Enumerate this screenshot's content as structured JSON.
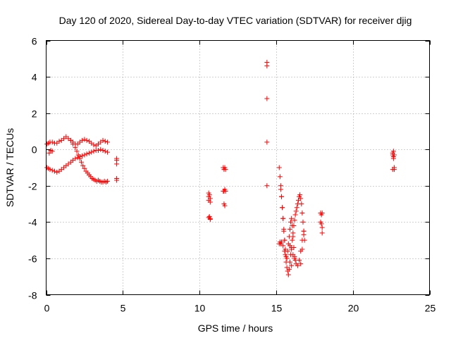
{
  "chart_data": {
    "type": "scatter",
    "title": "Day 120 of 2020, Sidereal Day-to-day VTEC variation (SDTVAR) for receiver djig",
    "xlabel": "GPS time / hours",
    "ylabel": "SDTVAR / TECUs",
    "xlim": [
      0,
      25
    ],
    "ylim": [
      -8,
      6
    ],
    "xticks": [
      0,
      5,
      10,
      15,
      20,
      25
    ],
    "yticks": [
      -8,
      -6,
      -4,
      -2,
      0,
      2,
      4,
      6
    ],
    "grid": true,
    "marker": "plus",
    "color": "#ff0000",
    "series": [
      {
        "name": "SDTVAR",
        "x": [
          0.05,
          0.15,
          0.25,
          0.4,
          0.55,
          0.7,
          0.85,
          1.0,
          1.15,
          1.3,
          1.45,
          1.6,
          1.75,
          1.9,
          2.05,
          2.2,
          2.35,
          2.5,
          2.65,
          2.8,
          2.95,
          3.1,
          3.25,
          3.4,
          3.55,
          3.7,
          3.85,
          4.0,
          0.05,
          0.15,
          0.25,
          0.4,
          0.55,
          0.7,
          0.85,
          1.0,
          1.15,
          1.3,
          1.45,
          1.6,
          1.75,
          1.9,
          2.05,
          2.2,
          2.35,
          2.5,
          2.65,
          2.8,
          2.95,
          3.1,
          3.25,
          3.4,
          3.55,
          3.7,
          3.85,
          4.0,
          1.6,
          1.75,
          1.9,
          2.0,
          2.1,
          2.2,
          2.3,
          2.4,
          2.5,
          2.6,
          2.7,
          2.8,
          2.9,
          3.0,
          3.1,
          3.2,
          3.3,
          3.4,
          3.5,
          3.6,
          3.7,
          3.8,
          3.9,
          4.0,
          0.2,
          0.3,
          0.4,
          4.6,
          4.6,
          4.6,
          4.6,
          4.6,
          10.6,
          10.6,
          10.6,
          10.6,
          10.65,
          10.65,
          10.7,
          10.7,
          10.7,
          10.7,
          11.55,
          11.55,
          11.6,
          11.6,
          11.6,
          11.65,
          11.65,
          11.65,
          11.7,
          11.7,
          14.4,
          14.4,
          14.4,
          14.4,
          14.4,
          15.2,
          15.25,
          15.3,
          15.35,
          15.35,
          15.4,
          15.45,
          15.45,
          15.5,
          15.55,
          15.55,
          15.6,
          15.65,
          15.7,
          15.75,
          15.8,
          15.85,
          15.9,
          15.95,
          16.0,
          16.0,
          16.05,
          16.1,
          16.15,
          16.2,
          16.25,
          16.3,
          16.35,
          16.4,
          16.45,
          16.5,
          16.55,
          16.6,
          16.65,
          16.7,
          16.75,
          16.8,
          16.85,
          16.6,
          16.7,
          16.8,
          15.3,
          15.35,
          15.4,
          15.45,
          15.5,
          15.55,
          15.6,
          15.65,
          15.7,
          15.75,
          15.8,
          15.85,
          15.9,
          15.95,
          16.0,
          16.05,
          16.1,
          16.15,
          16.2,
          16.25,
          16.3,
          16.4,
          16.5,
          16.6,
          16.7,
          16.8,
          15.2,
          15.25,
          15.3,
          15.9,
          16.0,
          16.1,
          16.2,
          17.9,
          17.9,
          17.95,
          17.95,
          18.0,
          18.0,
          18.0,
          22.6,
          22.6,
          22.65,
          22.65,
          22.7,
          22.7,
          22.6,
          22.65,
          22.7
        ],
        "y": [
          0.3,
          0.35,
          0.4,
          0.4,
          0.35,
          0.35,
          0.45,
          0.5,
          0.6,
          0.7,
          0.6,
          0.5,
          0.4,
          0.3,
          0.3,
          0.4,
          0.5,
          0.55,
          0.5,
          0.45,
          0.35,
          0.25,
          0.2,
          0.3,
          0.4,
          0.5,
          0.45,
          0.4,
          -1.0,
          -1.05,
          -1.1,
          -1.15,
          -1.2,
          -1.25,
          -1.2,
          -1.1,
          -1.0,
          -0.9,
          -0.8,
          -0.7,
          -0.6,
          -0.5,
          -0.45,
          -0.4,
          -0.35,
          -0.3,
          -0.25,
          -0.2,
          -0.15,
          -0.1,
          -0.05,
          -0.05,
          0.0,
          -0.05,
          -0.1,
          -0.15,
          0.5,
          0.3,
          0.1,
          -0.1,
          -0.3,
          -0.5,
          -0.7,
          -0.9,
          -1.05,
          -1.2,
          -1.3,
          -1.4,
          -1.5,
          -1.6,
          -1.65,
          -1.7,
          -1.75,
          -1.7,
          -1.75,
          -1.8,
          -1.8,
          -1.75,
          -1.8,
          -1.75,
          -0.2,
          -0.05,
          -0.1,
          -0.5,
          -0.6,
          -0.8,
          -1.6,
          -1.7,
          -2.4,
          -2.6,
          -2.8,
          -3.75,
          -2.5,
          -3.7,
          -2.7,
          -2.9,
          -3.8,
          -3.85,
          -1.0,
          -2.3,
          -1.1,
          -2.3,
          -3.0,
          -1.0,
          -2.2,
          -3.1,
          -1.1,
          -2.3,
          4.8,
          4.6,
          2.8,
          0.4,
          -2.0,
          -1.0,
          -1.5,
          -2.2,
          -2.6,
          -5.1,
          -3.2,
          -3.8,
          -5.3,
          -4.5,
          -5.0,
          -5.6,
          -5.8,
          -6.2,
          -6.5,
          -6.7,
          -6.9,
          -6.6,
          -6.2,
          -5.8,
          -5.4,
          -6.4,
          -5.0,
          -4.6,
          -4.2,
          -3.9,
          -3.6,
          -3.4,
          -3.2,
          -3.0,
          -2.8,
          -2.6,
          -2.5,
          -2.7,
          -3.0,
          -3.5,
          -4.0,
          -4.5,
          -5.0,
          -6.3,
          -5.5,
          -4.7,
          -2.0,
          -2.6,
          -3.2,
          -3.8,
          -4.4,
          -5.0,
          -5.5,
          -5.9,
          -6.0,
          -5.6,
          -5.2,
          -4.8,
          -4.4,
          -4.0,
          -3.8,
          -4.2,
          -4.8,
          -5.4,
          -5.9,
          -6.1,
          -6.3,
          -6.4,
          -6.1,
          -5.6,
          -5.0,
          -4.5,
          -5.2,
          -5.1,
          -5.2,
          -5.3,
          -5.5,
          -5.8,
          -6.0,
          -3.5,
          -4.0,
          -3.6,
          -4.1,
          -4.6,
          -3.5,
          -4.3,
          -0.3,
          -1.1,
          -0.1,
          -0.5,
          -0.3,
          -1.1,
          -0.2,
          -0.4,
          -1.0
        ]
      }
    ]
  }
}
